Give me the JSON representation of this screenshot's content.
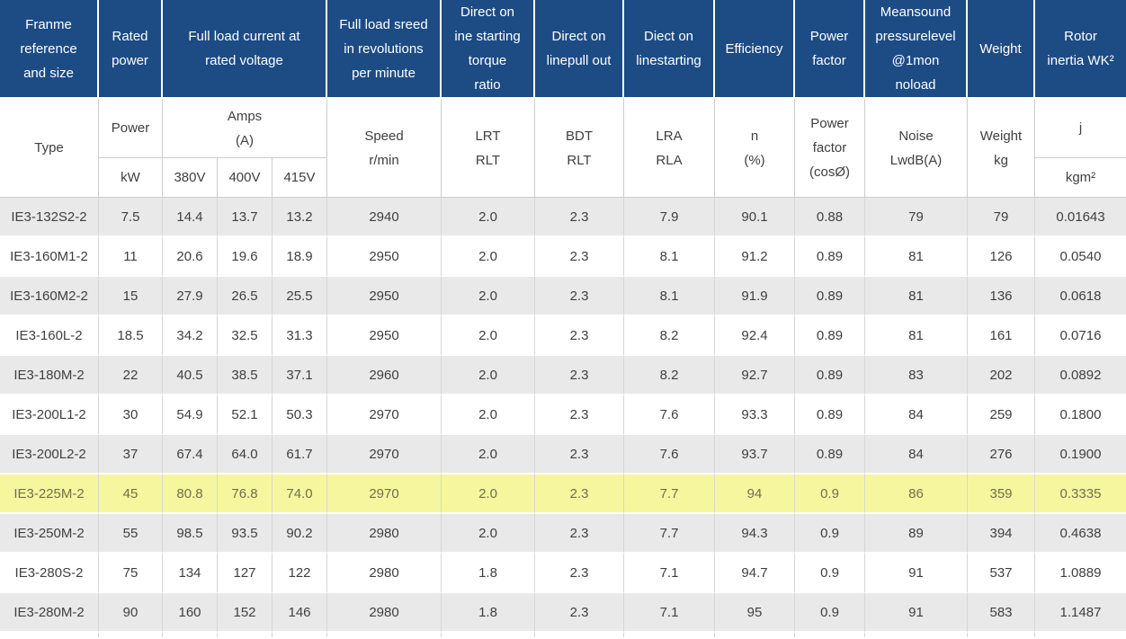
{
  "colors": {
    "header_bg": "#1d4b84",
    "header_text": "#ffffff",
    "row_alt_bg": "#e9e9e9",
    "row_bg": "#ffffff",
    "highlight_bg": "#f6f69f",
    "body_text": "#3f3f3f",
    "highlight_text": "#70704a",
    "grid_line": "#d6d6d6"
  },
  "header": {
    "row1": [
      "Franme\nreference\nand size",
      "Rated\npower",
      "Full load current at\nrated voltage",
      "Full load sreed\nin revolutions\nper minute",
      "Direct on\nine starting\ntorque\nratio",
      "Direct on\nlinepull out",
      "Diect on\nlinestarting",
      "Efficiency",
      "Power\nfactor",
      "Meansound\npressurelevel\n@1mon\nnoload",
      "Weight",
      "Rotor\ninertia WK²"
    ],
    "row2": {
      "type": "Type",
      "power": "Power",
      "amps": "Amps\n(A)",
      "speed": "Speed\nr/min",
      "lrt": "LRT\nRLT",
      "bdt": "BDT\nRLT",
      "lra": "LRA\nRLA",
      "n": "n\n(%)",
      "pf": "Power\nfactor\n(cosØ)",
      "noise": "Noise\nLwdB(A)",
      "weight": "Weight\nkg",
      "j": "j"
    },
    "row3": [
      "kW",
      "380V",
      "400V",
      "415V",
      "kgm²"
    ]
  },
  "columns": [
    "type",
    "kw",
    "380v",
    "400v",
    "415v",
    "speed",
    "lrt",
    "bdt",
    "lra",
    "efficiency",
    "power-factor",
    "noise",
    "weight",
    "rotor-inertia"
  ],
  "highlighted_row": "IE3-225M-2",
  "rows": [
    {
      "type": "IE3-132S2-2",
      "highlighted": false,
      "values": [
        "7.5",
        "14.4",
        "13.7",
        "13.2",
        "2940",
        "2.0",
        "2.3",
        "7.9",
        "90.1",
        "0.88",
        "79",
        "79",
        "0.01643"
      ]
    },
    {
      "type": "IE3-160M1-2",
      "highlighted": false,
      "values": [
        "11",
        "20.6",
        "19.6",
        "18.9",
        "2950",
        "2.0",
        "2.3",
        "8.1",
        "91.2",
        "0.89",
        "81",
        "126",
        "0.0540"
      ]
    },
    {
      "type": "IE3-160M2-2",
      "highlighted": false,
      "values": [
        "15",
        "27.9",
        "26.5",
        "25.5",
        "2950",
        "2.0",
        "2.3",
        "8.1",
        "91.9",
        "0.89",
        "81",
        "136",
        "0.0618"
      ]
    },
    {
      "type": "IE3-160L-2",
      "highlighted": false,
      "values": [
        "18.5",
        "34.2",
        "32.5",
        "31.3",
        "2950",
        "2.0",
        "2.3",
        "8.2",
        "92.4",
        "0.89",
        "81",
        "161",
        "0.0716"
      ]
    },
    {
      "type": "IE3-180M-2",
      "highlighted": false,
      "values": [
        "22",
        "40.5",
        "38.5",
        "37.1",
        "2960",
        "2.0",
        "2.3",
        "8.2",
        "92.7",
        "0.89",
        "83",
        "202",
        "0.0892"
      ]
    },
    {
      "type": "IE3-200L1-2",
      "highlighted": false,
      "values": [
        "30",
        "54.9",
        "52.1",
        "50.3",
        "2970",
        "2.0",
        "2.3",
        "7.6",
        "93.3",
        "0.89",
        "84",
        "259",
        "0.1800"
      ]
    },
    {
      "type": "IE3-200L2-2",
      "highlighted": false,
      "values": [
        "37",
        "67.4",
        "64.0",
        "61.7",
        "2970",
        "2.0",
        "2.3",
        "7.6",
        "93.7",
        "0.89",
        "84",
        "276",
        "0.1900"
      ]
    },
    {
      "type": "IE3-225M-2",
      "highlighted": true,
      "values": [
        "45",
        "80.8",
        "76.8",
        "74.0",
        "2970",
        "2.0",
        "2.3",
        "7.7",
        "94",
        "0.9",
        "86",
        "359",
        "0.3335"
      ]
    },
    {
      "type": "IE3-250M-2",
      "highlighted": false,
      "values": [
        "55",
        "98.5",
        "93.5",
        "90.2",
        "2980",
        "2.0",
        "2.3",
        "7.7",
        "94.3",
        "0.9",
        "89",
        "394",
        "0.4638"
      ]
    },
    {
      "type": "IE3-280S-2",
      "highlighted": false,
      "values": [
        "75",
        "134",
        "127",
        "122",
        "2980",
        "1.8",
        "2.3",
        "7.1",
        "94.7",
        "0.9",
        "91",
        "537",
        "1.0889"
      ]
    },
    {
      "type": "IE3-280M-2",
      "highlighted": false,
      "values": [
        "90",
        "160",
        "152",
        "146",
        "2980",
        "1.8",
        "2.3",
        "7.1",
        "95",
        "0.9",
        "91",
        "583",
        "1.1487"
      ]
    }
  ]
}
